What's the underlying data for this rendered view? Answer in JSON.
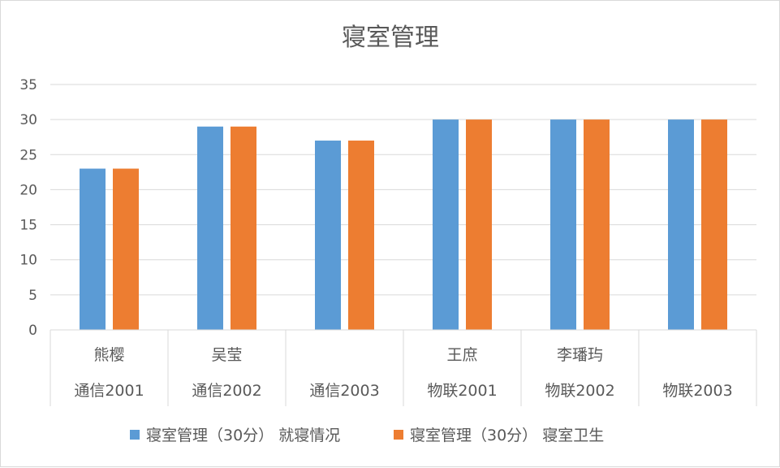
{
  "chart_data": {
    "type": "bar",
    "title": "寝室管理",
    "categories": [
      {
        "name": "熊樱",
        "group": "通信2001"
      },
      {
        "name": "吴莹",
        "group": "通信2002"
      },
      {
        "name": "",
        "group": "通信2003"
      },
      {
        "name": "王庶",
        "group": "物联2001"
      },
      {
        "name": "李璠玙",
        "group": "物联2002"
      },
      {
        "name": "",
        "group": "物联2003"
      }
    ],
    "series": [
      {
        "name": "寝室管理（30分） 就寝情况",
        "color": "#5B9BD5",
        "values": [
          23,
          29,
          27,
          30,
          30,
          30
        ]
      },
      {
        "name": "寝室管理（30分） 寝室卫生",
        "color": "#ED7D31",
        "values": [
          23,
          29,
          27,
          30,
          30,
          30
        ]
      }
    ],
    "ylim": [
      0,
      35
    ],
    "yticks": [
      0,
      5,
      10,
      15,
      20,
      25,
      30,
      35
    ],
    "grid": true,
    "legend": "bottom"
  }
}
